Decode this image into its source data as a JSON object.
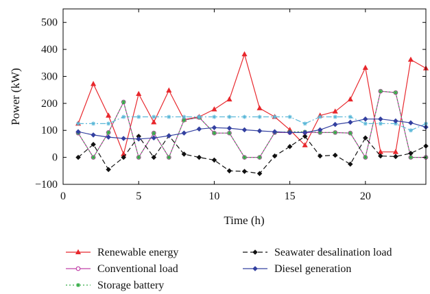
{
  "chart_data": {
    "type": "line",
    "title": "",
    "xlabel": "Time (h)",
    "ylabel": "Power (kW)",
    "xlim": [
      0,
      24
    ],
    "ylim": [
      -100,
      550
    ],
    "xticks": [
      0,
      5,
      10,
      15,
      20
    ],
    "yticks": [
      -100,
      0,
      100,
      200,
      300,
      400,
      500
    ],
    "grid": false,
    "legend_placement": "bottom",
    "x": [
      1,
      2,
      3,
      4,
      5,
      6,
      7,
      8,
      9,
      10,
      11,
      12,
      13,
      14,
      15,
      16,
      17,
      18,
      19,
      20,
      21,
      22,
      23,
      24
    ],
    "series": [
      {
        "name": "Renewable energy",
        "color": "#e8282d",
        "dash": "solid",
        "marker": "triangle",
        "values": [
          125,
          272,
          155,
          12,
          235,
          130,
          248,
          140,
          150,
          178,
          215,
          382,
          182,
          150,
          102,
          45,
          155,
          170,
          215,
          332,
          20,
          20,
          362,
          330
        ]
      },
      {
        "name": "Conventional load",
        "color": "#c040a8",
        "dash": "solid",
        "marker": "circle",
        "values": [
          90,
          0,
          92,
          205,
          0,
          90,
          0,
          138,
          148,
          90,
          90,
          0,
          0,
          92,
          92,
          92,
          92,
          92,
          90,
          0,
          245,
          240,
          0,
          0
        ]
      },
      {
        "name": "Storage battery",
        "color": "#33aa44",
        "dash": "dotted",
        "marker": "star",
        "values": [
          90,
          0,
          92,
          205,
          0,
          90,
          0,
          138,
          148,
          90,
          90,
          0,
          0,
          92,
          95,
          95,
          92,
          92,
          90,
          0,
          245,
          240,
          0,
          0
        ]
      },
      {
        "name": "Seawater desalination load",
        "color": "#111111",
        "dash": "dashed",
        "marker": "diamond",
        "values": [
          0,
          48,
          -45,
          0,
          78,
          0,
          80,
          12,
          0,
          -10,
          -50,
          -52,
          -60,
          5,
          40,
          78,
          5,
          8,
          -25,
          72,
          5,
          3,
          15,
          42
        ]
      },
      {
        "name": "",
        "color": "#5bb8d8",
        "dash": "dashdot",
        "marker": "star",
        "values": [
          125,
          125,
          125,
          150,
          150,
          150,
          150,
          150,
          150,
          150,
          150,
          150,
          150,
          150,
          150,
          125,
          150,
          150,
          150,
          125,
          125,
          125,
          100,
          125
        ]
      },
      {
        "name": "Diesel generation",
        "color": "#3340a0",
        "dash": "solid",
        "marker": "diamond",
        "values": [
          95,
          83,
          75,
          70,
          68,
          72,
          80,
          90,
          105,
          110,
          108,
          102,
          98,
          95,
          92,
          92,
          102,
          122,
          130,
          142,
          142,
          135,
          128,
          112
        ]
      }
    ],
    "legend": [
      {
        "label": "Renewable energy"
      },
      {
        "label": "Conventional load"
      },
      {
        "label": "Storage battery"
      },
      {
        "label": "Seawater desalination load"
      },
      {
        "label": "Diesel generation"
      }
    ]
  }
}
